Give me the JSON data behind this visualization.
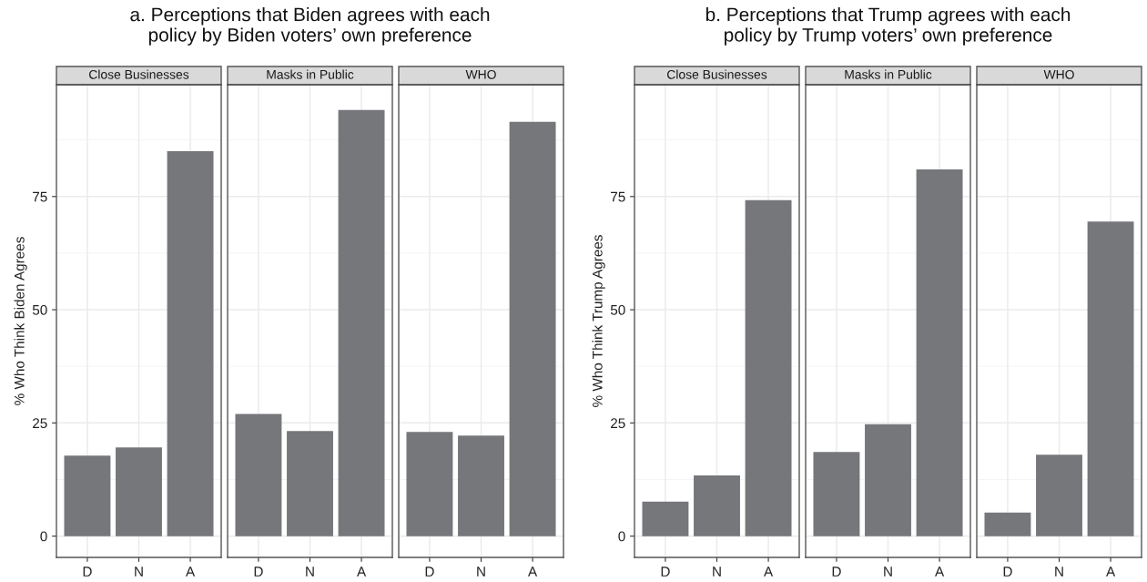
{
  "chart_data": [
    {
      "type": "bar",
      "title": "a. Perceptions that Biden agrees with each\npolicy by Biden voters’ own preference",
      "subtitle": "Close Businesses",
      "ylabel": "% Who Think Biden Agrees",
      "categories": [
        "D",
        "N",
        "A"
      ],
      "values": [
        17.8,
        19.6,
        85.0
      ],
      "color": "#76777b",
      "ylim": [
        -4.7,
        99.7
      ],
      "yticks": [
        0,
        25,
        50,
        75
      ],
      "grid": true
    },
    {
      "type": "bar",
      "subtitle": "Masks in Public",
      "categories": [
        "D",
        "N",
        "A"
      ],
      "values": [
        27.0,
        23.2,
        94.1
      ],
      "color": "#76777b",
      "ylim": [
        -4.7,
        99.7
      ],
      "yticks": [
        0,
        25,
        50,
        75
      ],
      "grid": true,
      "tick_labels": "x"
    },
    {
      "type": "bar",
      "subtitle": "WHO",
      "categories": [
        "D",
        "N",
        "A"
      ],
      "values": [
        23.0,
        22.2,
        91.5
      ],
      "color": "#76777b",
      "ylim": [
        -4.7,
        99.7
      ],
      "yticks": [
        0,
        25,
        50,
        75
      ],
      "grid": true,
      "tick_labels": "x"
    },
    {
      "type": "bar",
      "title": "b. Perceptions that Trump agrees with each\npolicy by Trump voters’ own preference",
      "subtitle": "Close Businesses",
      "ylabel": "% Who Think Trump Agrees",
      "categories": [
        "D",
        "N",
        "A"
      ],
      "values": [
        7.6,
        13.4,
        74.2
      ],
      "color": "#76777b",
      "ylim": [
        -4.7,
        99.7
      ],
      "yticks": [
        0,
        25,
        50,
        75
      ],
      "grid": true
    },
    {
      "type": "bar",
      "subtitle": "Masks in Public",
      "categories": [
        "D",
        "N",
        "A"
      ],
      "values": [
        18.6,
        24.7,
        81.0
      ],
      "color": "#76777b",
      "ylim": [
        -4.7,
        99.7
      ],
      "yticks": [
        0,
        25,
        50,
        75
      ],
      "grid": true,
      "tick_labels": "x"
    },
    {
      "type": "bar",
      "subtitle": "WHO",
      "categories": [
        "D",
        "N",
        "A"
      ],
      "values": [
        5.2,
        18.0,
        69.5
      ],
      "color": "#76777b",
      "ylim": [
        -4.7,
        99.7
      ],
      "yticks": [
        0,
        25,
        50,
        75
      ],
      "grid": true,
      "tick_labels": "x"
    }
  ]
}
